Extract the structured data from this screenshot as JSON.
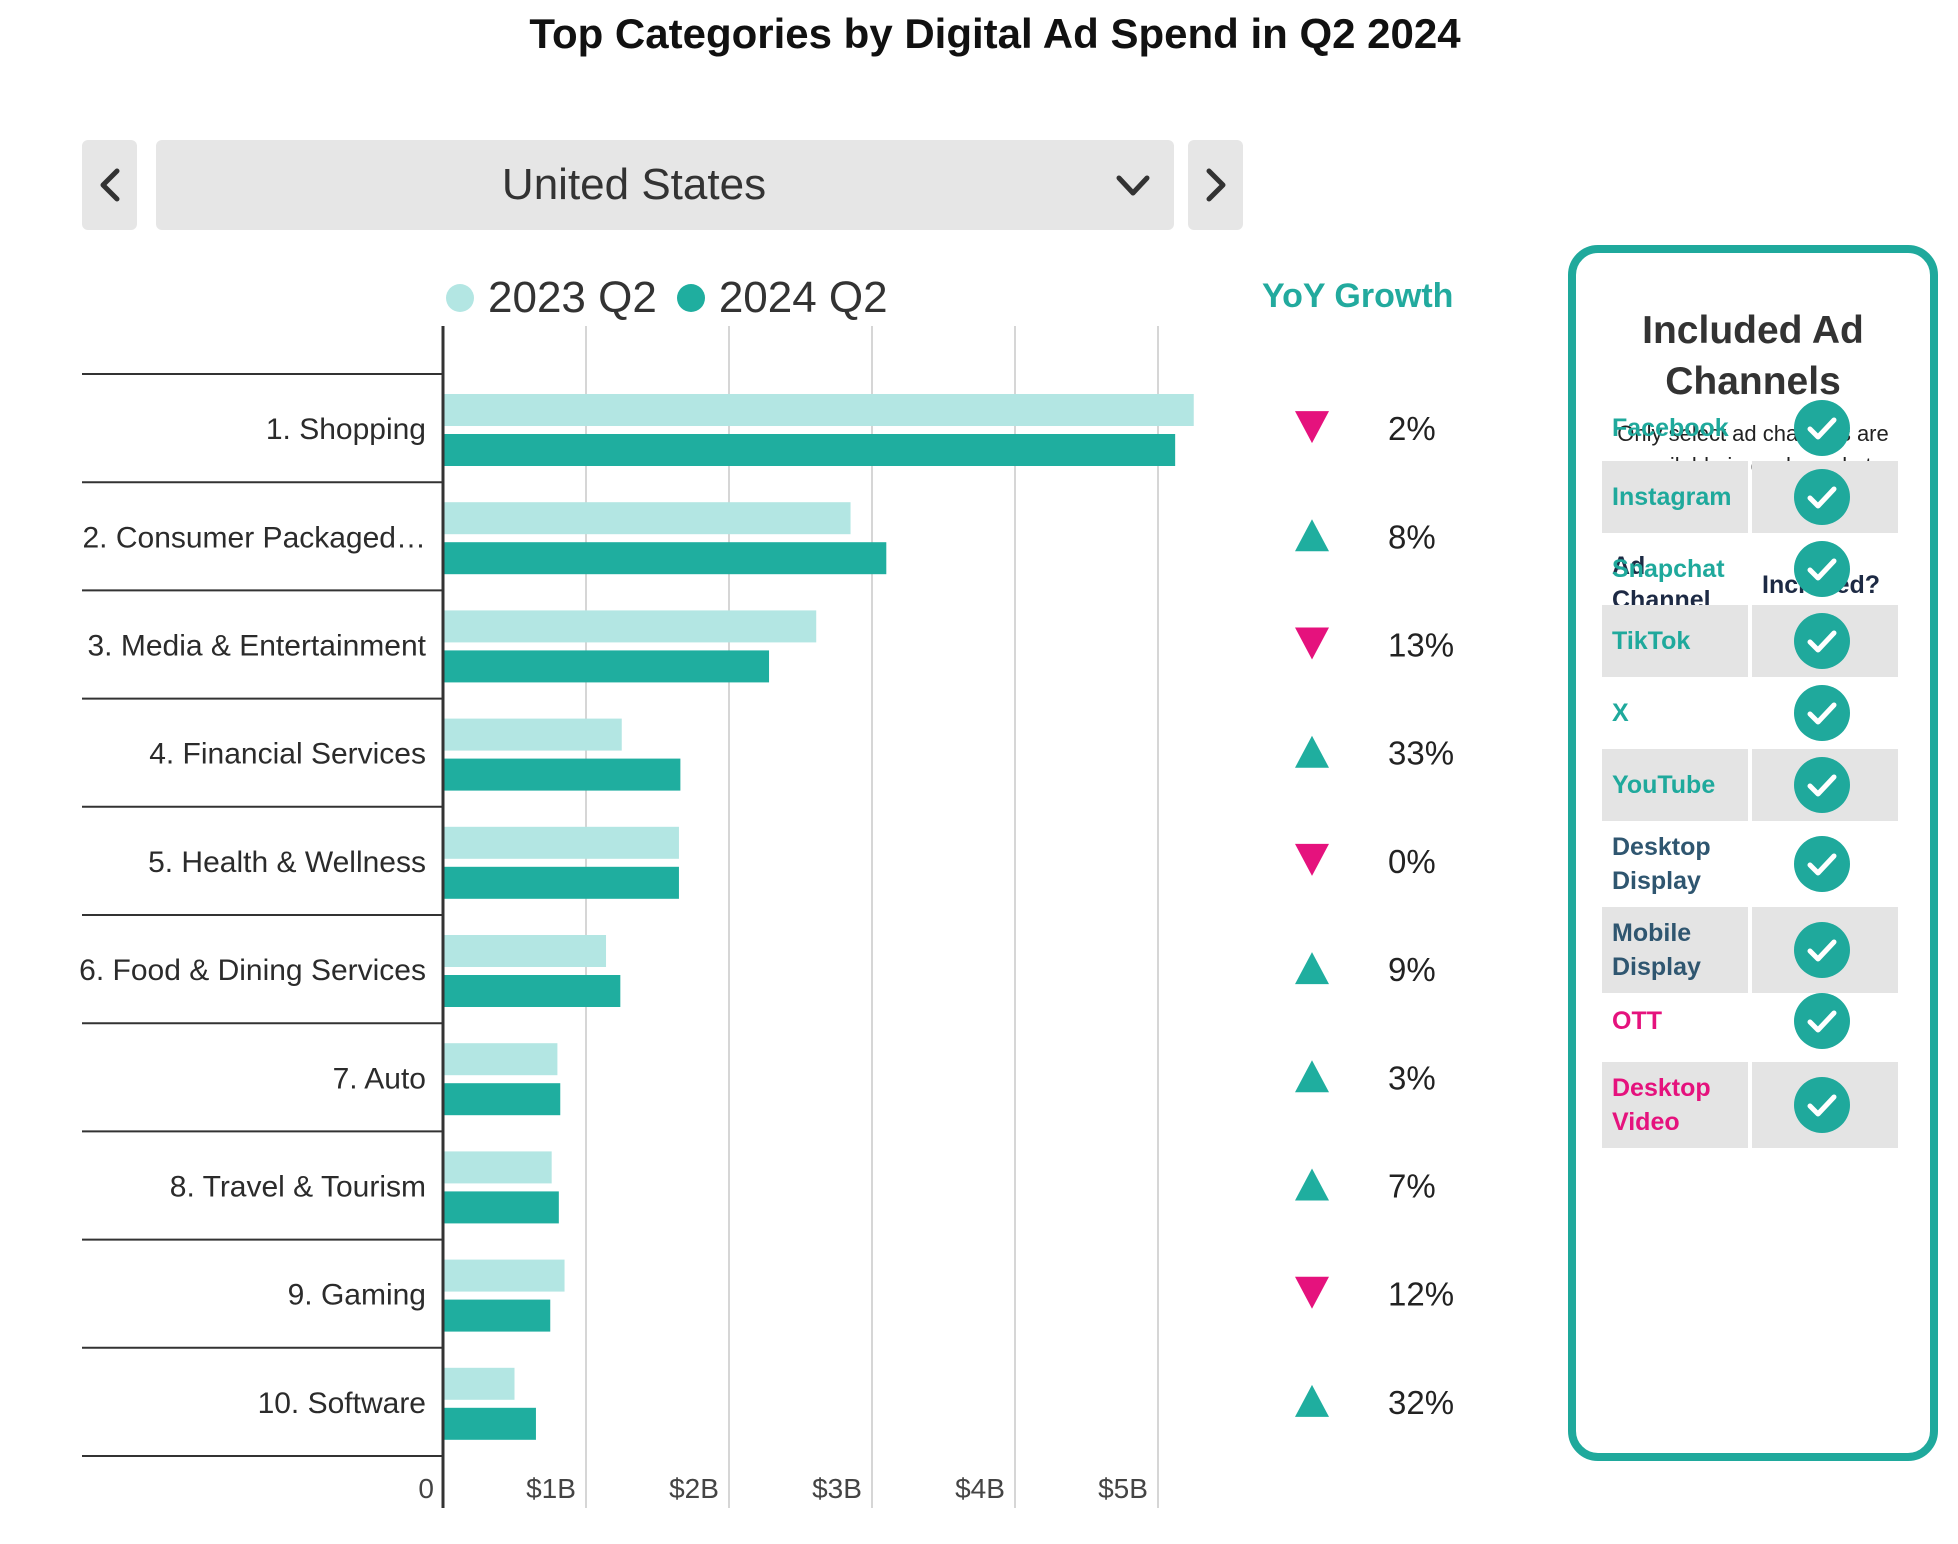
{
  "title": "Top Categories by Digital Ad Spend in Q2 2024",
  "selector": {
    "value": "United States"
  },
  "icons": {
    "prev": "chevron-left-icon",
    "next": "chevron-right-icon",
    "dropdown": "chevron-down-icon",
    "growth_up": "triangle-up-icon",
    "growth_down": "triangle-down-icon",
    "included": "check-circle-icon"
  },
  "yoy_header": "YoY Growth",
  "colors": {
    "series_2023": "#b3e6e3",
    "series_2024": "#1fae9f",
    "up": "#1fae9f",
    "down": "#e5127d",
    "accent": "#1fa99c"
  },
  "chart_data": {
    "type": "bar",
    "orientation": "horizontal",
    "title": "Top Categories by Digital Ad Spend in Q2 2024",
    "categories": [
      "1. Shopping",
      "2. Consumer Packaged…",
      "3. Media & Entertainment",
      "4. Financial Services",
      "5. Health & Wellness",
      "6. Food & Dining Services",
      "7. Auto",
      "8. Travel & Tourism",
      "9. Gaming",
      "10. Software"
    ],
    "series": [
      {
        "name": "2023 Q2",
        "values": [
          5.25,
          2.85,
          2.61,
          1.25,
          1.65,
          1.14,
          0.8,
          0.76,
          0.85,
          0.5
        ]
      },
      {
        "name": "2024 Q2",
        "values": [
          5.12,
          3.1,
          2.28,
          1.66,
          1.65,
          1.24,
          0.82,
          0.81,
          0.75,
          0.65
        ]
      }
    ],
    "growth": [
      {
        "direction": "down",
        "label": "2%"
      },
      {
        "direction": "up",
        "label": "8%"
      },
      {
        "direction": "down",
        "label": "13%"
      },
      {
        "direction": "up",
        "label": "33%"
      },
      {
        "direction": "down",
        "label": "0%"
      },
      {
        "direction": "up",
        "label": "9%"
      },
      {
        "direction": "up",
        "label": "3%"
      },
      {
        "direction": "up",
        "label": "7%"
      },
      {
        "direction": "down",
        "label": "12%"
      },
      {
        "direction": "up",
        "label": "32%"
      }
    ],
    "xlim": [
      0,
      5.5
    ],
    "xticks": [
      0,
      1,
      2,
      3,
      4,
      5
    ],
    "xtick_labels": [
      "0",
      "$1B",
      "$2B",
      "$3B",
      "$4B",
      "$5B"
    ],
    "xlabel": "",
    "ylabel": "",
    "grid": true,
    "legend": "top"
  },
  "panel": {
    "title": "Included Ad Channels",
    "subtitle": "Only select ad channels are available in each market",
    "col_channel": "Ad Channel",
    "col_included": "Included?",
    "channels": [
      {
        "name": "Facebook",
        "included": true,
        "color": "#1fa99c"
      },
      {
        "name": "Instagram",
        "included": true,
        "color": "#1fa99c"
      },
      {
        "name": "Snapchat",
        "included": true,
        "color": "#1fa99c"
      },
      {
        "name": "TikTok",
        "included": true,
        "color": "#1fa99c"
      },
      {
        "name": "X",
        "included": true,
        "color": "#1fa99c"
      },
      {
        "name": "YouTube",
        "included": true,
        "color": "#1fa99c"
      },
      {
        "name": "Desktop Display",
        "included": true,
        "color": "#2f5670"
      },
      {
        "name": "Mobile Display",
        "included": true,
        "color": "#2f5670"
      },
      {
        "name": "OTT",
        "included": true,
        "color": "#e5127d"
      },
      {
        "name": "Desktop Video",
        "included": true,
        "color": "#e5127d"
      }
    ]
  }
}
